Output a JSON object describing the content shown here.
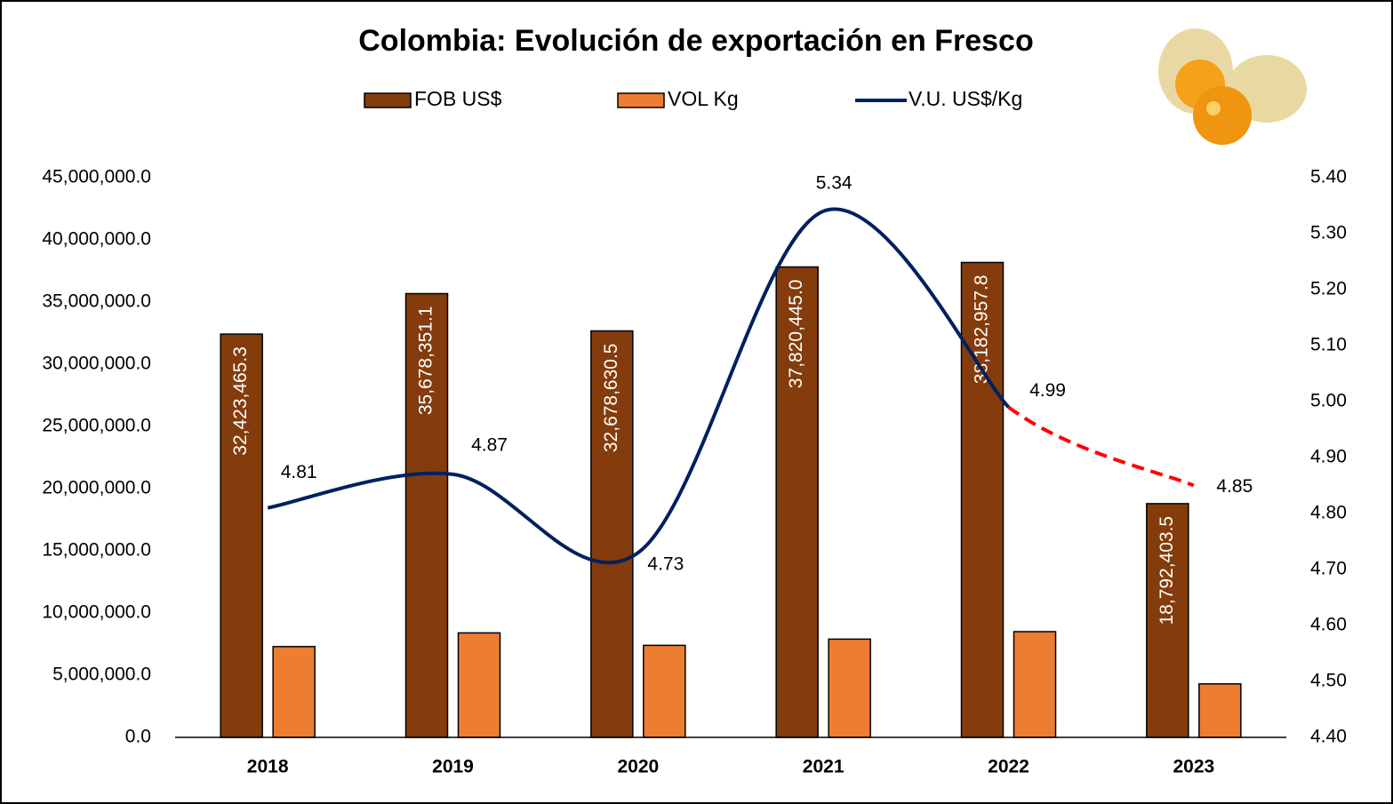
{
  "chart_data": {
    "type": "bar-line",
    "title": "Colombia: Evolución de exportación en Fresco",
    "categories": [
      "2018",
      "2019",
      "2020",
      "2021",
      "2022",
      "2023"
    ],
    "series": [
      {
        "name": "FOB US$",
        "type": "bar",
        "color": "#843c0c",
        "values": [
          32423465.3,
          35678351.1,
          32678630.5,
          37820445.0,
          38182957.8,
          18792403.5
        ],
        "value_labels": [
          "32,423,465.3",
          "35,678,351.1",
          "32,678,630.5",
          "37,820,445.0",
          "38,182,957.8",
          "18,792,403.5"
        ]
      },
      {
        "name": "VOL Kg",
        "type": "bar",
        "color": "#ed7d31",
        "values": [
          7300000,
          8400000,
          7400000,
          7900000,
          8500000,
          4300000
        ]
      },
      {
        "name": "V.U. US$/Kg",
        "type": "line",
        "axis": "y2",
        "color": "#002060",
        "dashed_last_segment": true,
        "dashed_color": "#ff0000",
        "values": [
          4.81,
          4.87,
          4.73,
          5.34,
          4.99,
          4.85
        ]
      }
    ],
    "ylim": [
      0,
      45000000
    ],
    "yticks": [
      {
        "value": 0,
        "label": "0.0"
      },
      {
        "value": 5000000,
        "label": "5,000,000.0"
      },
      {
        "value": 10000000,
        "label": "10,000,000.0"
      },
      {
        "value": 15000000,
        "label": "15,000,000.0"
      },
      {
        "value": 20000000,
        "label": "20,000,000.0"
      },
      {
        "value": 25000000,
        "label": "25,000,000.0"
      },
      {
        "value": 30000000,
        "label": "30,000,000.0"
      },
      {
        "value": 35000000,
        "label": "35,000,000.0"
      },
      {
        "value": 40000000,
        "label": "40,000,000.0"
      },
      {
        "value": 45000000,
        "label": "45,000,000.0"
      }
    ],
    "y2lim": [
      4.4,
      5.4
    ],
    "y2ticks": [
      {
        "value": 4.4,
        "label": "4.40"
      },
      {
        "value": 4.5,
        "label": "4.50"
      },
      {
        "value": 4.6,
        "label": "4.60"
      },
      {
        "value": 4.7,
        "label": "4.70"
      },
      {
        "value": 4.8,
        "label": "4.80"
      },
      {
        "value": 4.9,
        "label": "4.90"
      },
      {
        "value": 5.0,
        "label": "5.00"
      },
      {
        "value": 5.1,
        "label": "5.10"
      },
      {
        "value": 5.2,
        "label": "5.20"
      },
      {
        "value": 5.3,
        "label": "5.30"
      },
      {
        "value": 5.4,
        "label": "5.40"
      }
    ],
    "grid": false
  }
}
